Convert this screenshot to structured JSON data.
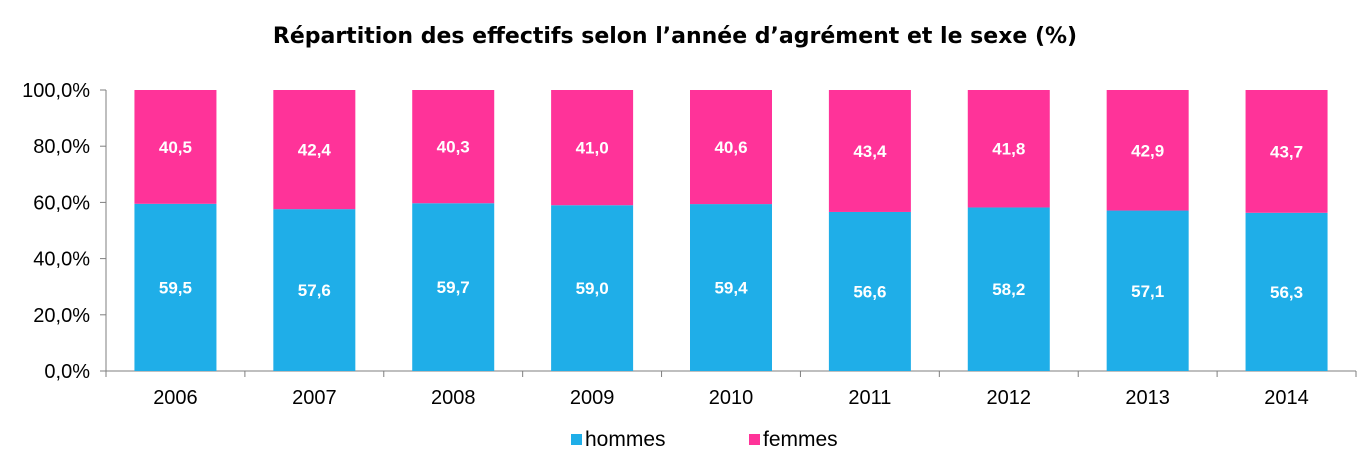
{
  "chart_data": {
    "type": "bar",
    "stacked": true,
    "title": "Répartition des effectifs selon l’année d’agrément et le sexe (%)",
    "xlabel": "",
    "ylabel": "",
    "categories": [
      "2006",
      "2007",
      "2008",
      "2009",
      "2010",
      "2011",
      "2012",
      "2013",
      "2014"
    ],
    "series": [
      {
        "name": "hommes",
        "color": "#1FAEE8",
        "values": [
          59.5,
          57.6,
          59.7,
          59.0,
          59.4,
          56.6,
          58.2,
          57.1,
          56.3
        ],
        "labels": [
          "59,5",
          "57,6",
          "59,7",
          "59,0",
          "59,4",
          "56,6",
          "58,2",
          "57,1",
          "56,3"
        ]
      },
      {
        "name": "femmes",
        "color": "#FF3399",
        "values": [
          40.5,
          42.4,
          40.3,
          41.0,
          40.6,
          43.4,
          41.8,
          42.9,
          43.7
        ],
        "labels": [
          "40,5",
          "42,4",
          "40,3",
          "41,0",
          "40,6",
          "43,4",
          "41,8",
          "42,9",
          "43,7"
        ]
      }
    ],
    "ylim": [
      0,
      100
    ],
    "yticks": [
      0,
      20,
      40,
      60,
      80,
      100
    ],
    "ytick_labels": [
      "0,0%",
      "20,0%",
      "40,0%",
      "60,0%",
      "80,0%",
      "100,0%"
    ],
    "grid": false,
    "legend": "bottom"
  }
}
